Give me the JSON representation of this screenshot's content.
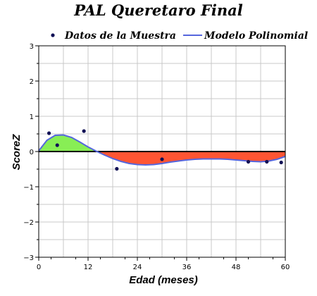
{
  "chart_data": {
    "type": "scatter",
    "title": "PAL Queretaro Final",
    "xlabel": "Edad (meses)",
    "ylabel": "ScoreZ",
    "xlim": [
      0,
      60
    ],
    "ylim": [
      -3,
      3
    ],
    "x_ticks": [
      0,
      12,
      24,
      36,
      48,
      60
    ],
    "y_ticks": [
      3,
      2,
      1,
      0,
      -1,
      -2,
      -3
    ],
    "x_tick_labels": [
      "0",
      "12",
      "24",
      "36",
      "48",
      "60"
    ],
    "y_tick_labels": [
      "3",
      "2",
      "1",
      "0",
      "−1",
      "−2",
      "−3"
    ],
    "grid": true,
    "legend_position": "top",
    "fill_above_color": "#88ee55",
    "fill_below_color": "#ff5533",
    "series": [
      {
        "name": "Datos de la Muestra",
        "kind": "points",
        "color": "#111155",
        "x": [
          2.5,
          4.5,
          11,
          19,
          30,
          51,
          55.5,
          59
        ],
        "y": [
          0.52,
          0.18,
          0.58,
          -0.49,
          -0.22,
          -0.29,
          -0.29,
          -0.31
        ]
      },
      {
        "name": "Modelo Polinomial",
        "kind": "line",
        "color": "#5566dd",
        "x": [
          0,
          2,
          4,
          6,
          8,
          10,
          12,
          14,
          16,
          18,
          20,
          22,
          24,
          26,
          28,
          30,
          32,
          34,
          36,
          38,
          40,
          42,
          44,
          46,
          48,
          50,
          52,
          54,
          56,
          58,
          60
        ],
        "y": [
          0.02,
          0.32,
          0.46,
          0.47,
          0.4,
          0.27,
          0.13,
          0.01,
          -0.1,
          -0.2,
          -0.28,
          -0.34,
          -0.37,
          -0.38,
          -0.37,
          -0.34,
          -0.3,
          -0.27,
          -0.24,
          -0.22,
          -0.21,
          -0.21,
          -0.21,
          -0.22,
          -0.24,
          -0.26,
          -0.28,
          -0.29,
          -0.27,
          -0.22,
          -0.14
        ]
      }
    ]
  }
}
